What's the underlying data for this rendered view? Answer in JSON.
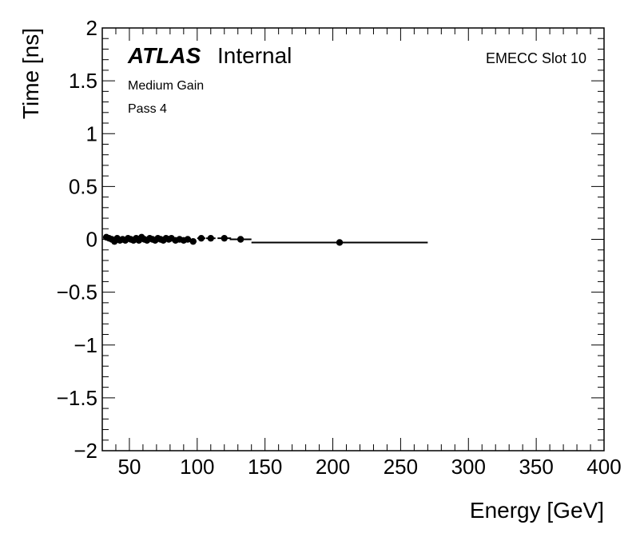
{
  "chart_data": {
    "type": "scatter",
    "xlabel": "Energy [GeV]",
    "ylabel": "Time [ns]",
    "xlim": [
      30,
      400
    ],
    "ylim": [
      -2,
      2
    ],
    "x_ticks": [
      50,
      100,
      150,
      200,
      250,
      300,
      350,
      400
    ],
    "x_tick_labels": [
      "50",
      "100",
      "150",
      "200",
      "250",
      "300",
      "350",
      "400"
    ],
    "y_ticks": [
      -2,
      -1.5,
      -1,
      -0.5,
      0,
      0.5,
      1,
      1.5,
      2
    ],
    "y_tick_labels": [
      "−2",
      "−1.5",
      "−1",
      "−0.5",
      "0",
      "0.5",
      "1",
      "1.5",
      "2"
    ],
    "series": [
      {
        "points": [
          {
            "x": 33,
            "y": 0.02
          },
          {
            "x": 35,
            "y": 0.01
          },
          {
            "x": 37,
            "y": 0.0
          },
          {
            "x": 39,
            "y": -0.02
          },
          {
            "x": 41,
            "y": 0.01
          },
          {
            "x": 43,
            "y": -0.01
          },
          {
            "x": 45,
            "y": 0.0
          },
          {
            "x": 47,
            "y": -0.01
          },
          {
            "x": 49,
            "y": 0.01
          },
          {
            "x": 51,
            "y": 0.0
          },
          {
            "x": 53,
            "y": -0.01
          },
          {
            "x": 55,
            "y": 0.01
          },
          {
            "x": 57,
            "y": -0.01
          },
          {
            "x": 59,
            "y": 0.02
          },
          {
            "x": 61,
            "y": 0.0
          },
          {
            "x": 63,
            "y": -0.01
          },
          {
            "x": 65,
            "y": 0.01
          },
          {
            "x": 67,
            "y": 0.0
          },
          {
            "x": 69,
            "y": -0.01
          },
          {
            "x": 71,
            "y": 0.01
          },
          {
            "x": 73,
            "y": 0.0
          },
          {
            "x": 75,
            "y": -0.01
          },
          {
            "x": 77,
            "y": 0.01
          },
          {
            "x": 79,
            "y": 0.0
          },
          {
            "x": 81,
            "y": 0.01
          },
          {
            "x": 84,
            "y": -0.01
          },
          {
            "x": 87,
            "y": 0.0
          },
          {
            "x": 90,
            "y": -0.01
          },
          {
            "x": 93,
            "y": 0.0
          },
          {
            "x": 97,
            "y": -0.02
          },
          {
            "x": 103,
            "y": 0.01
          },
          {
            "x": 110,
            "y": 0.01
          },
          {
            "x": 120,
            "y": 0.01
          },
          {
            "x": 132,
            "y": 0.0
          },
          {
            "x": 205,
            "y": -0.03
          }
        ],
        "x_errors": [
          1,
          1,
          1,
          1,
          1,
          1,
          1,
          1,
          1,
          1,
          1,
          1,
          1,
          1,
          1,
          1,
          1,
          1,
          1,
          1,
          1,
          1,
          1,
          1,
          1.5,
          1.5,
          1.5,
          1.5,
          1.5,
          2.5,
          3,
          3.5,
          5,
          8,
          65
        ]
      }
    ],
    "annotations": {
      "experiment": "ATLAS",
      "status": "Internal",
      "gain": "Medium Gain",
      "pass": "Pass 4",
      "slot": "EMECC Slot 10"
    },
    "grid": false
  }
}
